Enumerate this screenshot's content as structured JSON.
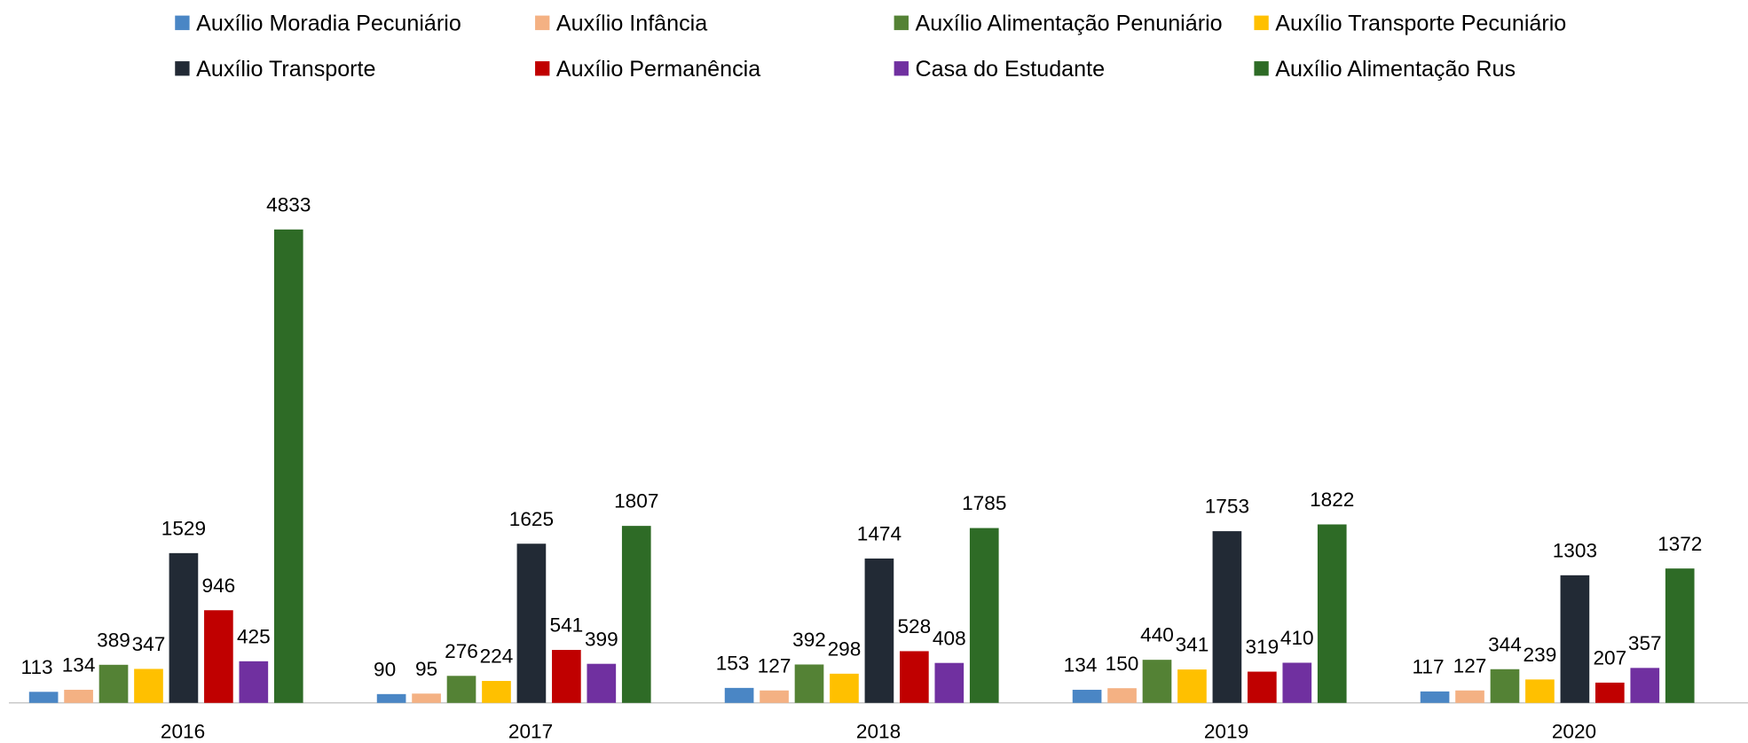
{
  "chart_data": {
    "type": "bar",
    "categories": [
      "2016",
      "2017",
      "2018",
      "2019",
      "2020"
    ],
    "series": [
      {
        "name": "Auxílio Moradia Pecuniário",
        "color": "#4a86c5",
        "values": [
          113,
          90,
          153,
          134,
          117
        ]
      },
      {
        "name": "Auxílio Infância",
        "color": "#f4b183",
        "values": [
          134,
          95,
          127,
          150,
          127
        ]
      },
      {
        "name": "Auxílio Alimentação Penuniário",
        "color": "#548235",
        "values": [
          389,
          276,
          392,
          440,
          344
        ]
      },
      {
        "name": "Auxílio Transporte Pecuniário",
        "color": "#ffc000",
        "values": [
          347,
          224,
          298,
          341,
          239
        ]
      },
      {
        "name": "Auxílio Transporte",
        "color": "#222a35",
        "values": [
          1529,
          1625,
          1474,
          1753,
          1303
        ]
      },
      {
        "name": "Auxílio Permanência",
        "color": "#c00000",
        "values": [
          946,
          541,
          528,
          319,
          207
        ]
      },
      {
        "name": "Casa do Estudante",
        "color": "#7030a0",
        "values": [
          425,
          399,
          408,
          410,
          357
        ]
      },
      {
        "name": "Auxílio Alimentação Rus",
        "color": "#2e6b26",
        "values": [
          4833,
          1807,
          1785,
          1822,
          1372
        ]
      }
    ],
    "legend": "top"
  }
}
